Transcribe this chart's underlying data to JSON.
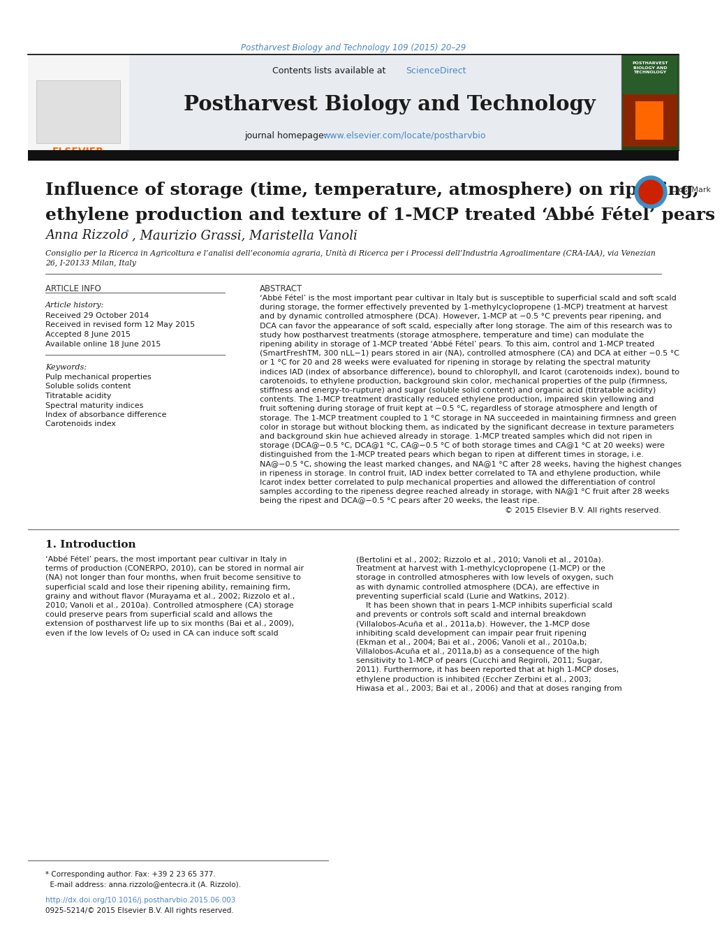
{
  "page_background": "#ffffff",
  "top_journal_ref": "Postharvest Biology and Technology 109 (2015) 20–29",
  "top_journal_ref_color": "#4a86c8",
  "header_bg": "#e8ecf0",
  "header_border_color": "#000000",
  "journal_name": "Postharvest Biology and Technology",
  "contents_text": "Contents lists available at ",
  "sciencedirect_text": "ScienceDirect",
  "sciencedirect_color": "#4a86c8",
  "journal_homepage_text": "journal homepage: ",
  "journal_url": "www.elsevier.com/locate/postharvbio",
  "journal_url_color": "#4a86c8",
  "divider_color": "#000000",
  "article_title_line1": "Influence of storage (time, temperature, atmosphere) on ripening,",
  "article_title_line2": "ethylene production and texture of 1-MCP treated ‘Abbé Fétel’ pears",
  "article_title_color": "#1a1a1a",
  "authors_part1": "Anna Rizzolo",
  "authors_part2": ", Maurizio Grassi, Maristella Vanoli",
  "affiliation_line1": "Consiglio per la Ricerca in Agricoltura e l’analisi dell’economia agraria, Unità di Ricerca per i Processi dell’Industria Agroalimentare (CRA-IAA), via Venezian",
  "affiliation_line2": "26, I-20133 Milan, Italy",
  "section_article_info": "ARTICLE INFO",
  "section_abstract": "ABSTRACT",
  "article_history_label": "Article history:",
  "article_history_lines": [
    "Received 29 October 2014",
    "Received in revised form 12 May 2015",
    "Accepted 8 June 2015",
    "Available online 18 June 2015"
  ],
  "keywords_label": "Keywords:",
  "keywords_lines": [
    "Pulp mechanical properties",
    "Soluble solids content",
    "Titratable acidity",
    "Spectral maturity indices",
    "Index of absorbance difference",
    "Carotenoids index"
  ],
  "abstract_lines": [
    "‘Abbé Fétel’ is the most important pear cultivar in Italy but is susceptible to superficial scald and soft scald",
    "during storage, the former effectively prevented by 1-methylcyclopropene (1-MCP) treatment at harvest",
    "and by dynamic controlled atmosphere (DCA). However, 1-MCP at −0.5 °C prevents pear ripening, and",
    "DCA can favor the appearance of soft scald, especially after long storage. The aim of this research was to",
    "study how postharvest treatments (storage atmosphere, temperature and time) can modulate the",
    "ripening ability in storage of 1-MCP treated ‘Abbé Fétel’ pears. To this aim, control and 1-MCP treated",
    "(SmartFreshTM, 300 nLL−1) pears stored in air (NA), controlled atmosphere (CA) and DCA at either −0.5 °C",
    "or 1 °C for 20 and 28 weeks were evaluated for ripening in storage by relating the spectral maturity",
    "indices IAD (index of absorbance difference), bound to chlorophyll, and Icarot (carotenoids index), bound to",
    "carotenoids, to ethylene production, background skin color, mechanical properties of the pulp (firmness,",
    "stiffness and energy-to-rupture) and sugar (soluble solid content) and organic acid (titratable acidity)",
    "contents. The 1-MCP treatment drastically reduced ethylene production, impaired skin yellowing and",
    "fruit softening during storage of fruit kept at −0.5 °C, regardless of storage atmosphere and length of",
    "storage. The 1-MCP treatment coupled to 1 °C storage in NA succeeded in maintaining firmness and green",
    "color in storage but without blocking them, as indicated by the significant decrease in texture parameters",
    "and background skin hue achieved already in storage. 1-MCP treated samples which did not ripen in",
    "storage (DCA@−0.5 °C, DCA@1 °C, CA@−0.5 °C of both storage times and CA@1 °C at 20 weeks) were",
    "distinguished from the 1-MCP treated pears which began to ripen at different times in storage, i.e.",
    "NA@−0.5 °C, showing the least marked changes, and NA@1 °C after 28 weeks, having the highest changes",
    "in ripeness in storage. In control fruit, IAD index better correlated to TA and ethylene production, while",
    "Icarot index better correlated to pulp mechanical properties and allowed the differentiation of control",
    "samples according to the ripeness degree reached already in storage, with NA@1 °C fruit after 28 weeks",
    "being the ripest and DCA@−0.5 °C pears after 20 weeks, the least ripe.",
    "© 2015 Elsevier B.V. All rights reserved."
  ],
  "intro_header": "1. Introduction",
  "intro_left_lines": [
    "‘Abbé Fétel’ pears, the most important pear cultivar in Italy in",
    "terms of production (CONERPO, 2010), can be stored in normal air",
    "(NA) not longer than four months, when fruit become sensitive to",
    "superficial scald and lose their ripening ability, remaining firm,",
    "grainy and without flavor (Murayama et al., 2002; Rizzolo et al.,",
    "2010; Vanoli et al., 2010a). Controlled atmosphere (CA) storage",
    "could preserve pears from superficial scald and allows the",
    "extension of postharvest life up to six months (Bai et al., 2009),",
    "even if the low levels of O₂ used in CA can induce soft scald"
  ],
  "intro_right_lines": [
    "(Bertolini et al., 2002; Rizzolo et al., 2010; Vanoli et al., 2010a).",
    "Treatment at harvest with 1-methylcyclopropene (1-MCP) or the",
    "storage in controlled atmospheres with low levels of oxygen, such",
    "as with dynamic controlled atmosphere (DCA), are effective in",
    "preventing superficial scald (Lurie and Watkins, 2012).",
    "    It has been shown that in pears 1-MCP inhibits superficial scald",
    "and prevents or controls soft scald and internal breakdown",
    "(Villalobos-Acuña et al., 2011a,b). However, the 1-MCP dose",
    "inhibiting scald development can impair pear fruit ripening",
    "(Ekman et al., 2004; Bai et al., 2006; Vanoli et al., 2010a,b;",
    "Villalobos-Acuña et al., 2011a,b) as a consequence of the high",
    "sensitivity to 1-MCP of pears (Cucchi and Regiroli, 2011; Sugar,",
    "2011). Furthermore, it has been reported that at high 1-MCP doses,",
    "ethylene production is inhibited (Eccher Zerbini et al., 2003;",
    "Hiwasa et al., 2003; Bai et al., 2006) and that at doses ranging from"
  ],
  "footer_star_line": "* Corresponding author. Fax: +39 2 23 65 377.",
  "footer_email_line": "  E-mail address: anna.rizzolo@entecra.it (A. Rizzolo).",
  "footer_doi": "http://dx.doi.org/10.1016/j.postharvbio.2015.06.003",
  "footer_issn": "0925-5214/© 2015 Elsevier B.V. All rights reserved.",
  "text_color": "#1a1a1a",
  "link_color": "#4a86c8",
  "header_bg_color": "#e8ecf0"
}
